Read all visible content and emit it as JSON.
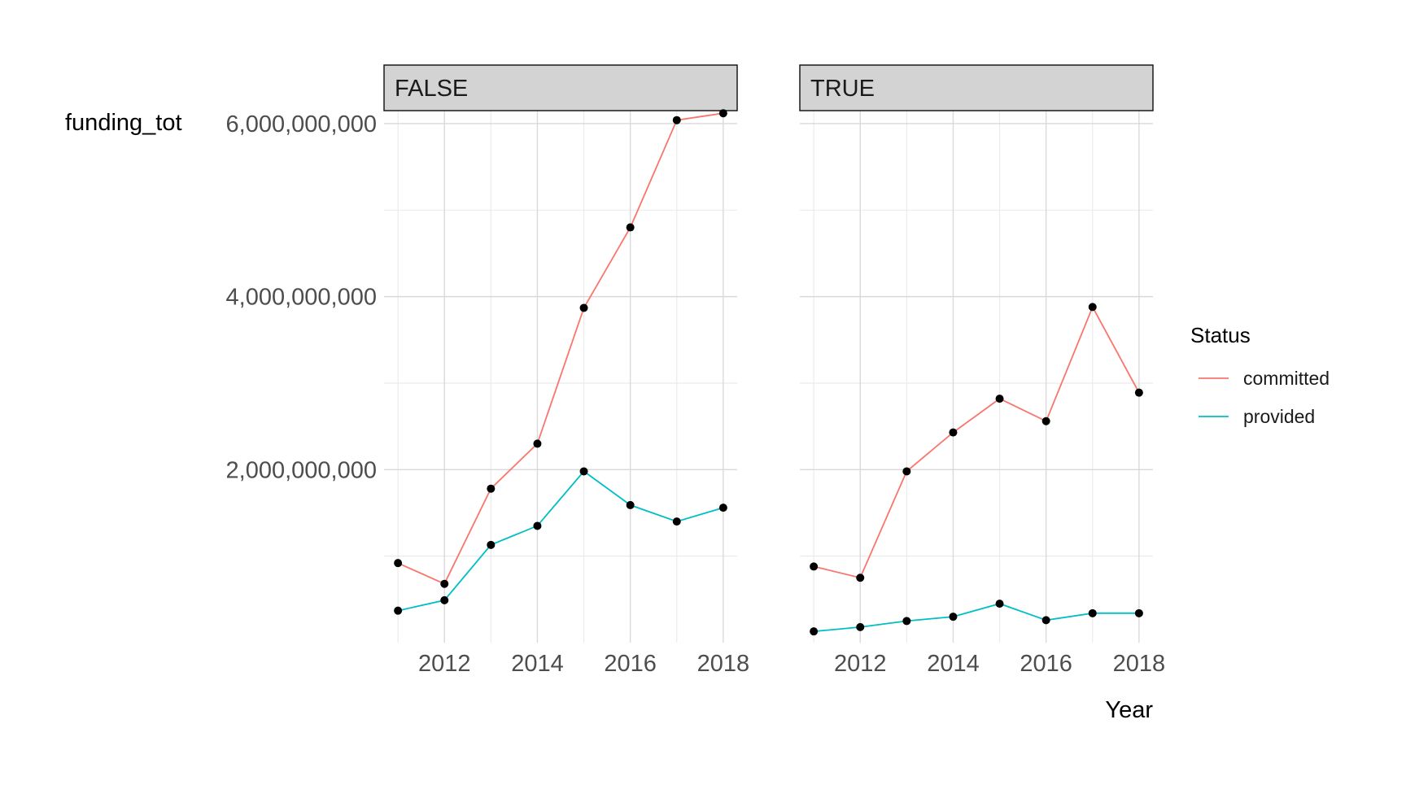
{
  "chart_data": {
    "type": "line",
    "xlabel": "Year",
    "ylabel": "funding_tot",
    "xlim": [
      2010.7,
      2018.3
    ],
    "ylim": [
      0,
      6150000000
    ],
    "x_ticks": [
      2012,
      2014,
      2016,
      2018
    ],
    "x_tick_labels": [
      "2012",
      "2014",
      "2016",
      "2018"
    ],
    "y_ticks": [
      2000000000,
      4000000000,
      6000000000
    ],
    "y_tick_labels": [
      "2,000,000,000",
      "4,000,000,000",
      "6,000,000,000"
    ],
    "grid": true,
    "legend": {
      "title": "Status",
      "position": "right",
      "entries": [
        {
          "label": "committed",
          "color": "#F8766D"
        },
        {
          "label": "provided",
          "color": "#00BFC4"
        }
      ]
    },
    "panels": [
      {
        "label": "FALSE",
        "x": [
          2011,
          2012,
          2013,
          2014,
          2015,
          2016,
          2017,
          2018
        ],
        "series": [
          {
            "name": "committed",
            "color": "#F8766D",
            "values": [
              920000000,
              680000000,
              1780000000,
              2300000000,
              3870000000,
              4800000000,
              6040000000,
              6120000000
            ]
          },
          {
            "name": "provided",
            "color": "#00BFC4",
            "values": [
              370000000,
              490000000,
              1130000000,
              1350000000,
              1980000000,
              1590000000,
              1400000000,
              1560000000
            ]
          }
        ]
      },
      {
        "label": "TRUE",
        "x": [
          2011,
          2012,
          2013,
          2014,
          2015,
          2016,
          2017,
          2018
        ],
        "series": [
          {
            "name": "committed",
            "color": "#F8766D",
            "values": [
              880000000,
              750000000,
              1980000000,
              2430000000,
              2820000000,
              2560000000,
              3880000000,
              2890000000
            ]
          },
          {
            "name": "provided",
            "color": "#00BFC4",
            "values": [
              130000000,
              180000000,
              250000000,
              300000000,
              450000000,
              260000000,
              340000000,
              340000000
            ]
          }
        ]
      }
    ],
    "point_color": "#000000",
    "strip_fill": "#d3d3d3",
    "grid_color": "#d9d9d9"
  }
}
